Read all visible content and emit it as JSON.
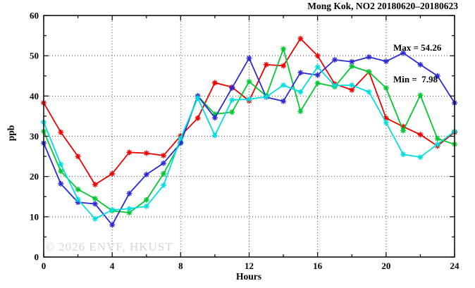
{
  "page": {
    "background": "#ffffff"
  },
  "chart_data": {
    "type": "line",
    "title": "Mong Kok, NO2 20180620–20180623",
    "xlabel": "Hours",
    "ylabel": "ppb",
    "xlim": [
      0,
      24
    ],
    "ylim": [
      0,
      60
    ],
    "xticks": [
      0,
      4,
      8,
      12,
      16,
      20,
      24
    ],
    "x_minor_ticks": [
      2,
      6,
      10,
      14,
      18,
      22
    ],
    "yticks": [
      0,
      10,
      20,
      30,
      40,
      50,
      60
    ],
    "y_minor_ticks": [
      5,
      15,
      25,
      35,
      45,
      55
    ],
    "grid": "dotted lines at major ticks",
    "legend_position": "none",
    "marker": "star",
    "annotations": {
      "max_label": "Max = 54.26",
      "min_label": "Min =  7.98"
    },
    "watermark": "© 2026 ENVF, HKUST",
    "x": [
      0,
      1,
      2,
      3,
      4,
      5,
      6,
      7,
      8,
      9,
      10,
      11,
      12,
      13,
      14,
      15,
      16,
      17,
      18,
      19,
      20,
      21,
      22,
      23,
      24
    ],
    "series": [
      {
        "name": "red",
        "color": "#ee0000",
        "values": [
          38.3,
          31.0,
          25.0,
          18.0,
          20.7,
          26.0,
          25.8,
          25.2,
          30.1,
          34.5,
          43.3,
          42.2,
          38.8,
          47.8,
          47.5,
          54.26,
          50.0,
          43.0,
          41.5,
          46.0,
          34.5,
          32.4,
          30.4,
          27.6,
          31.0
        ]
      },
      {
        "name": "green",
        "color": "#00c832",
        "values": [
          31.2,
          21.3,
          16.8,
          14.5,
          11.5,
          11.0,
          14.2,
          20.7,
          28.5,
          40.0,
          35.5,
          36.0,
          43.6,
          40.0,
          51.7,
          36.2,
          43.2,
          42.3,
          47.4,
          46.0,
          42.0,
          31.4,
          40.2,
          29.4,
          28.0
        ]
      },
      {
        "name": "blue",
        "color": "#2a2ad4",
        "values": [
          28.3,
          18.2,
          13.6,
          13.2,
          7.98,
          15.8,
          20.5,
          23.3,
          28.3,
          40.0,
          34.6,
          42.0,
          49.4,
          39.7,
          38.7,
          45.8,
          45.2,
          49.0,
          48.5,
          49.7,
          48.6,
          50.7,
          47.8,
          45.0,
          38.3
        ]
      },
      {
        "name": "cyan",
        "color": "#00dddd",
        "values": [
          33.5,
          23.0,
          14.3,
          9.5,
          11.7,
          12.0,
          12.6,
          17.8,
          29.5,
          39.5,
          30.2,
          39.0,
          39.2,
          39.8,
          42.7,
          41.0,
          47.2,
          42.6,
          42.7,
          41.0,
          33.4,
          25.5,
          24.8,
          28.0,
          31.2
        ]
      }
    ]
  }
}
